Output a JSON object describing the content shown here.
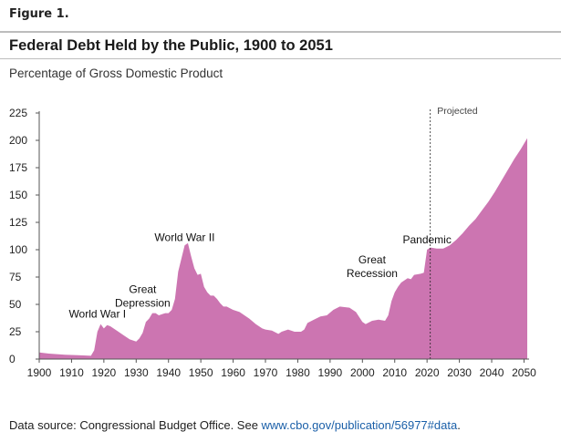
{
  "figure_label": "Figure 1.",
  "title": "Federal Debt Held by the Public, 1900 to 2051",
  "subtitle": "Percentage of Gross Domestic Product",
  "source": {
    "text": "Data source: Congressional Budget Office. See ",
    "link": "www.cbo.gov/publication/56977#data",
    "suffix": "."
  },
  "colors": {
    "area": "#cc75b1",
    "axis": "#555555",
    "text": "#222222",
    "link": "#1a5fa8"
  },
  "chart_data": {
    "type": "area",
    "title": "Federal Debt Held by the Public, 1900 to 2051",
    "ylabel": "Percentage of Gross Domestic Product",
    "xlabel": "",
    "xlim": [
      1900,
      2051
    ],
    "ylim": [
      0,
      225
    ],
    "x_ticks": [
      1900,
      1910,
      1920,
      1930,
      1940,
      1950,
      1960,
      1970,
      1980,
      1990,
      2000,
      2010,
      2020,
      2030,
      2040,
      2050
    ],
    "y_ticks": [
      0,
      25,
      50,
      75,
      100,
      125,
      150,
      175,
      200,
      225
    ],
    "grid": false,
    "projection_start": 2021,
    "series": [
      {
        "values": [
          [
            1900,
            6
          ],
          [
            1903,
            5
          ],
          [
            1908,
            4
          ],
          [
            1912,
            3.5
          ],
          [
            1916,
            3
          ],
          [
            1917,
            8
          ],
          [
            1918,
            25
          ],
          [
            1919,
            32
          ],
          [
            1920,
            28
          ],
          [
            1921,
            31
          ],
          [
            1922,
            30
          ],
          [
            1924,
            26
          ],
          [
            1926,
            22
          ],
          [
            1928,
            18
          ],
          [
            1930,
            16
          ],
          [
            1931,
            19
          ],
          [
            1932,
            24
          ],
          [
            1933,
            34
          ],
          [
            1934,
            37
          ],
          [
            1935,
            42
          ],
          [
            1936,
            42
          ],
          [
            1937,
            40
          ],
          [
            1938,
            41
          ],
          [
            1939,
            42
          ],
          [
            1940,
            42
          ],
          [
            1941,
            45
          ],
          [
            1942,
            55
          ],
          [
            1943,
            80
          ],
          [
            1944,
            92
          ],
          [
            1945,
            104
          ],
          [
            1946,
            106
          ],
          [
            1947,
            94
          ],
          [
            1948,
            83
          ],
          [
            1949,
            77
          ],
          [
            1950,
            78
          ],
          [
            1951,
            66
          ],
          [
            1952,
            61
          ],
          [
            1953,
            58
          ],
          [
            1954,
            58
          ],
          [
            1955,
            55
          ],
          [
            1956,
            51
          ],
          [
            1957,
            48
          ],
          [
            1958,
            48
          ],
          [
            1960,
            45
          ],
          [
            1962,
            43
          ],
          [
            1965,
            37
          ],
          [
            1967,
            32
          ],
          [
            1969,
            28
          ],
          [
            1970,
            27
          ],
          [
            1972,
            26
          ],
          [
            1974,
            23
          ],
          [
            1975,
            25
          ],
          [
            1977,
            27
          ],
          [
            1979,
            25
          ],
          [
            1981,
            25
          ],
          [
            1982,
            27
          ],
          [
            1983,
            33
          ],
          [
            1985,
            36
          ],
          [
            1987,
            39
          ],
          [
            1989,
            40
          ],
          [
            1991,
            45
          ],
          [
            1993,
            48
          ],
          [
            1996,
            47
          ],
          [
            1998,
            43
          ],
          [
            2000,
            34
          ],
          [
            2001,
            32
          ],
          [
            2003,
            35
          ],
          [
            2005,
            36
          ],
          [
            2007,
            35
          ],
          [
            2008,
            40
          ],
          [
            2009,
            53
          ],
          [
            2010,
            61
          ],
          [
            2011,
            66
          ],
          [
            2012,
            70
          ],
          [
            2013,
            72
          ],
          [
            2014,
            74
          ],
          [
            2015,
            73
          ],
          [
            2016,
            77
          ],
          [
            2018,
            78
          ],
          [
            2019,
            79
          ],
          [
            2020,
            100
          ],
          [
            2021,
            102
          ],
          [
            2023,
            101
          ],
          [
            2025,
            101
          ],
          [
            2027,
            104
          ],
          [
            2029,
            109
          ],
          [
            2031,
            115
          ],
          [
            2033,
            122
          ],
          [
            2035,
            128
          ],
          [
            2037,
            136
          ],
          [
            2039,
            144
          ],
          [
            2041,
            153
          ],
          [
            2043,
            163
          ],
          [
            2045,
            173
          ],
          [
            2047,
            183
          ],
          [
            2049,
            192
          ],
          [
            2051,
            202
          ]
        ]
      }
    ],
    "annotations": [
      {
        "lines": [
          "World War I"
        ],
        "x": 1918,
        "y": 38
      },
      {
        "lines": [
          "Great",
          "Depression"
        ],
        "x": 1932,
        "y": 48
      },
      {
        "lines": [
          "World War II"
        ],
        "x": 1945,
        "y": 108
      },
      {
        "lines": [
          "Great",
          "Recession"
        ],
        "x": 2003,
        "y": 75
      },
      {
        "lines": [
          "Pandemic"
        ],
        "x": 2020,
        "y": 106
      },
      {
        "lines": [
          "Projected"
        ],
        "x": 2022,
        "y": 224
      }
    ]
  }
}
